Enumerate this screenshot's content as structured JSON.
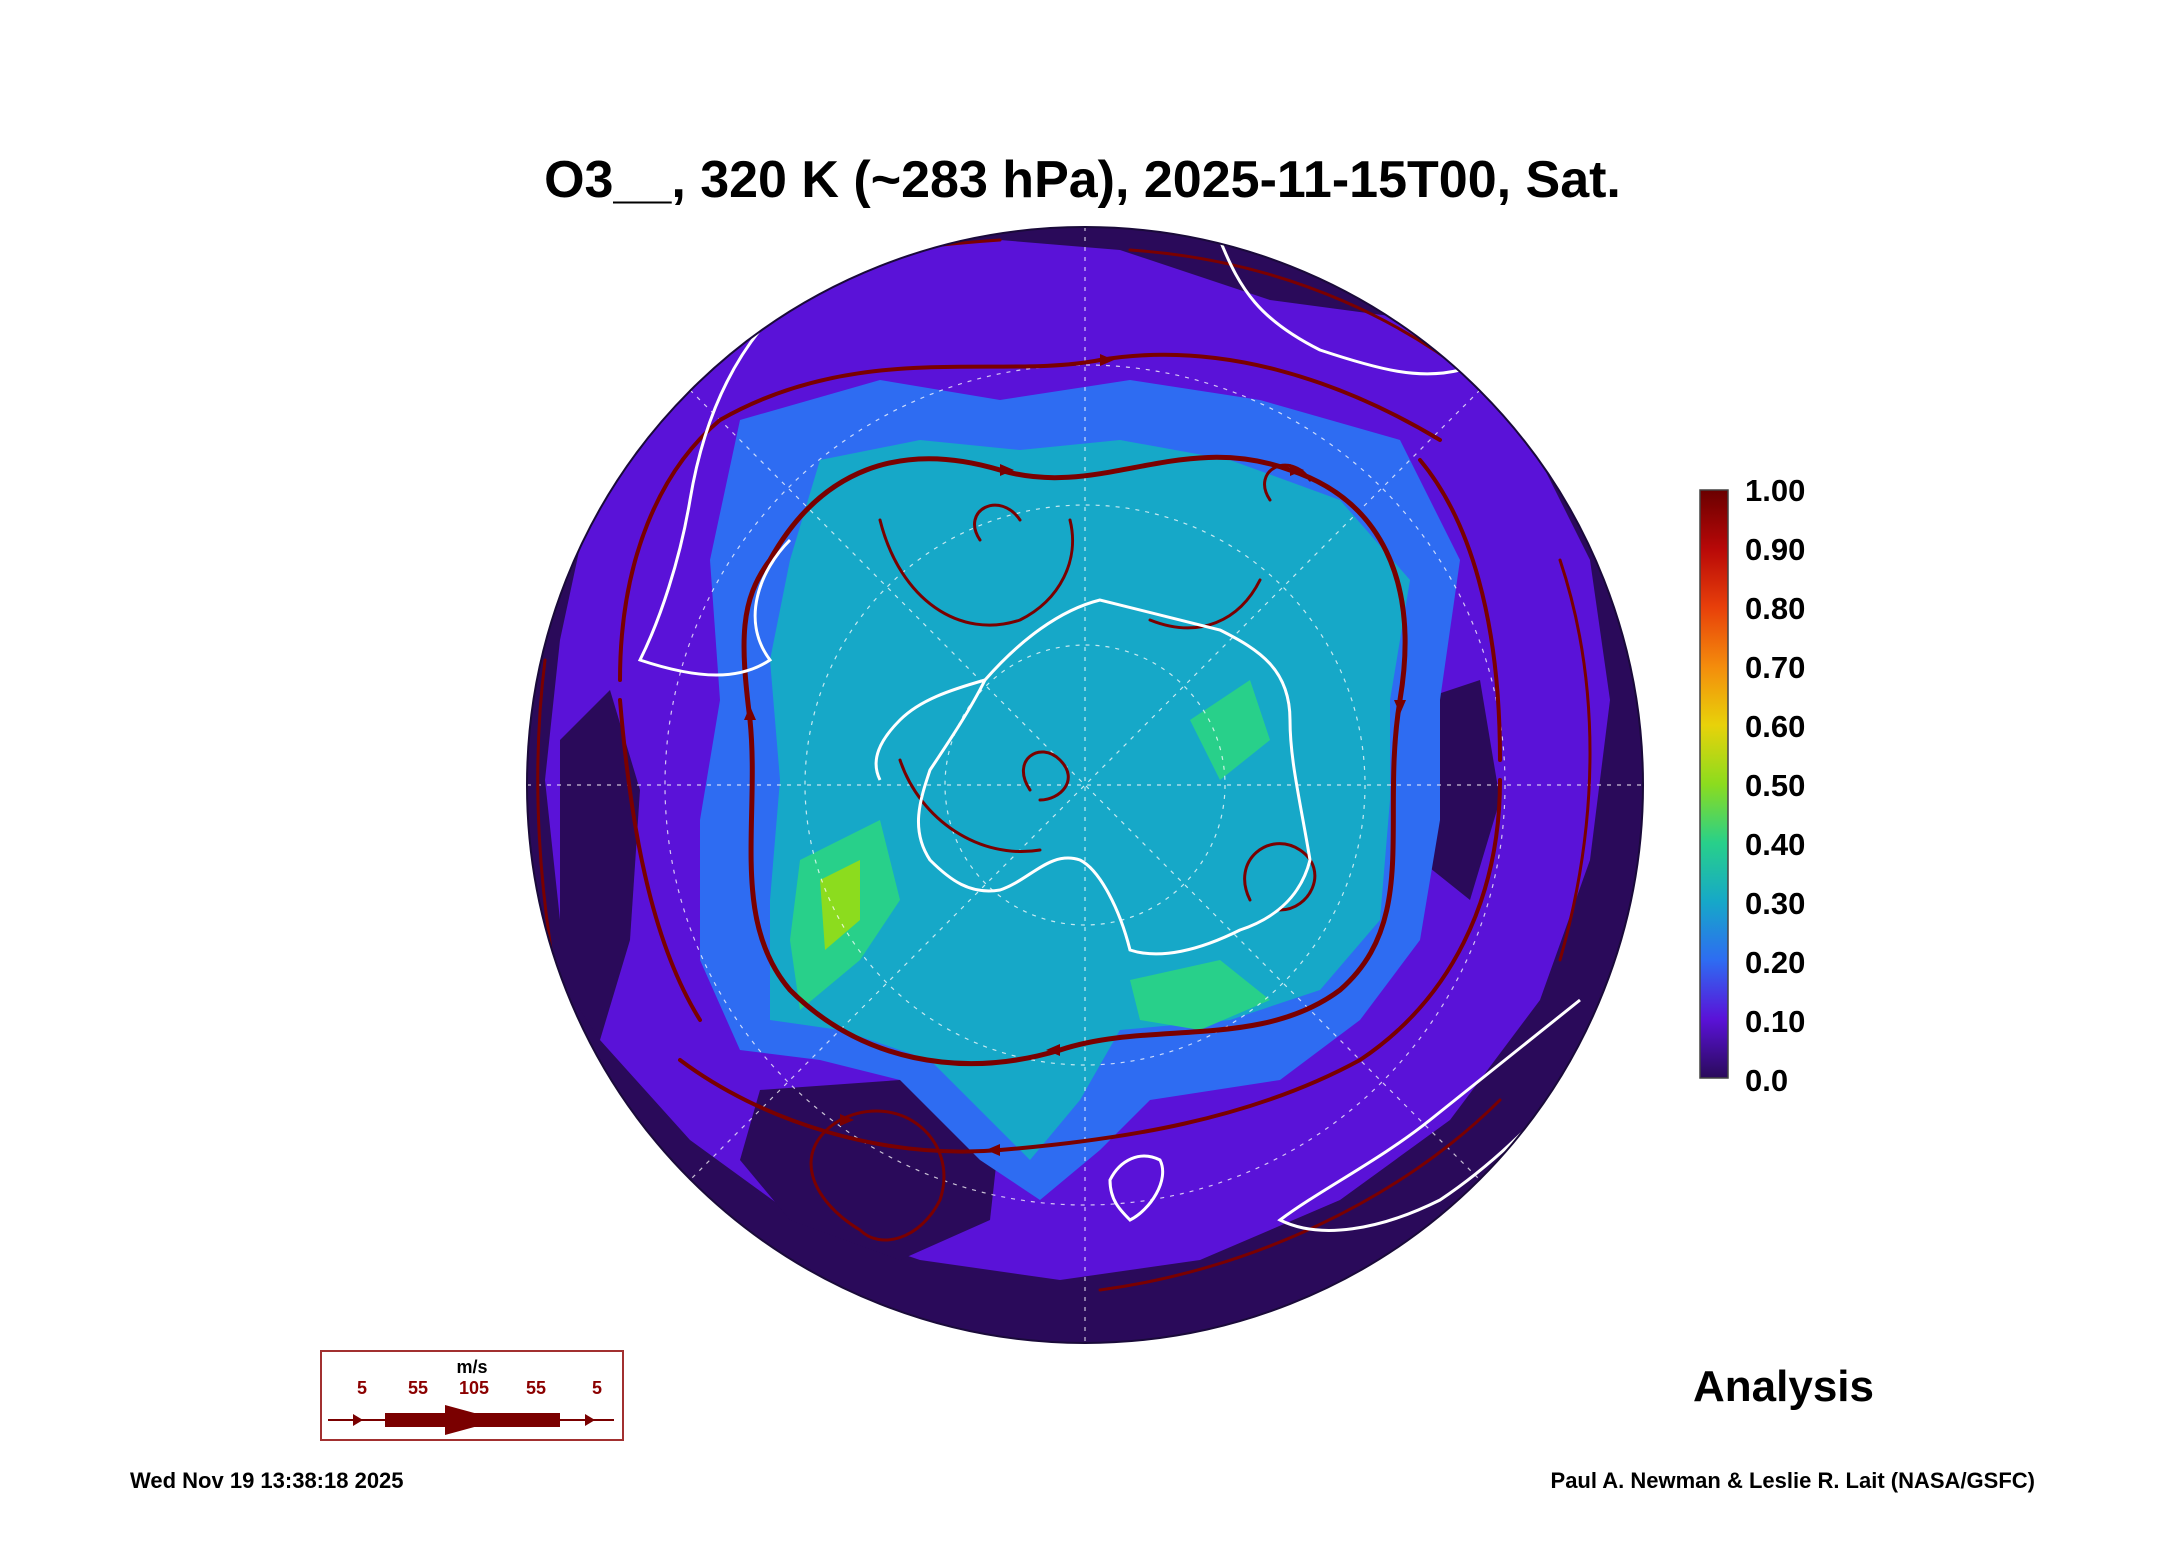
{
  "title": "O3__, 320 K (~283 hPa), 2025-11-15T00, Sat.",
  "colorbar": {
    "labels": [
      "1.00",
      "0.90",
      "0.80",
      "0.70",
      "0.60",
      "0.50",
      "0.40",
      "0.30",
      "0.20",
      "0.10",
      "0.0"
    ],
    "colors": [
      "#2a0a5a",
      "#5a12d8",
      "#2e6cf2",
      "#16a8c8",
      "#28d08a",
      "#8cdc1e",
      "#e8d20a",
      "#f48c0c",
      "#e8400a",
      "#b80808",
      "#6a0000"
    ]
  },
  "map_colors": {
    "background": "#2a0a5a",
    "low": "#5a12d8",
    "mid": "#2e6cf2",
    "core": "#16a8c8",
    "high": "#28d08a",
    "peak": "#8cdc1e",
    "streamline": "#7a0000",
    "coastline": "#ffffff"
  },
  "wind_legend": {
    "unit": "m/s",
    "values": [
      "5",
      "55",
      "105",
      "55",
      "5"
    ]
  },
  "label_analysis": "Analysis",
  "timestamp": "Wed Nov 19 13:38:18 2025",
  "credit": "Paul A. Newman & Leslie R. Lait (NASA/GSFC)"
}
